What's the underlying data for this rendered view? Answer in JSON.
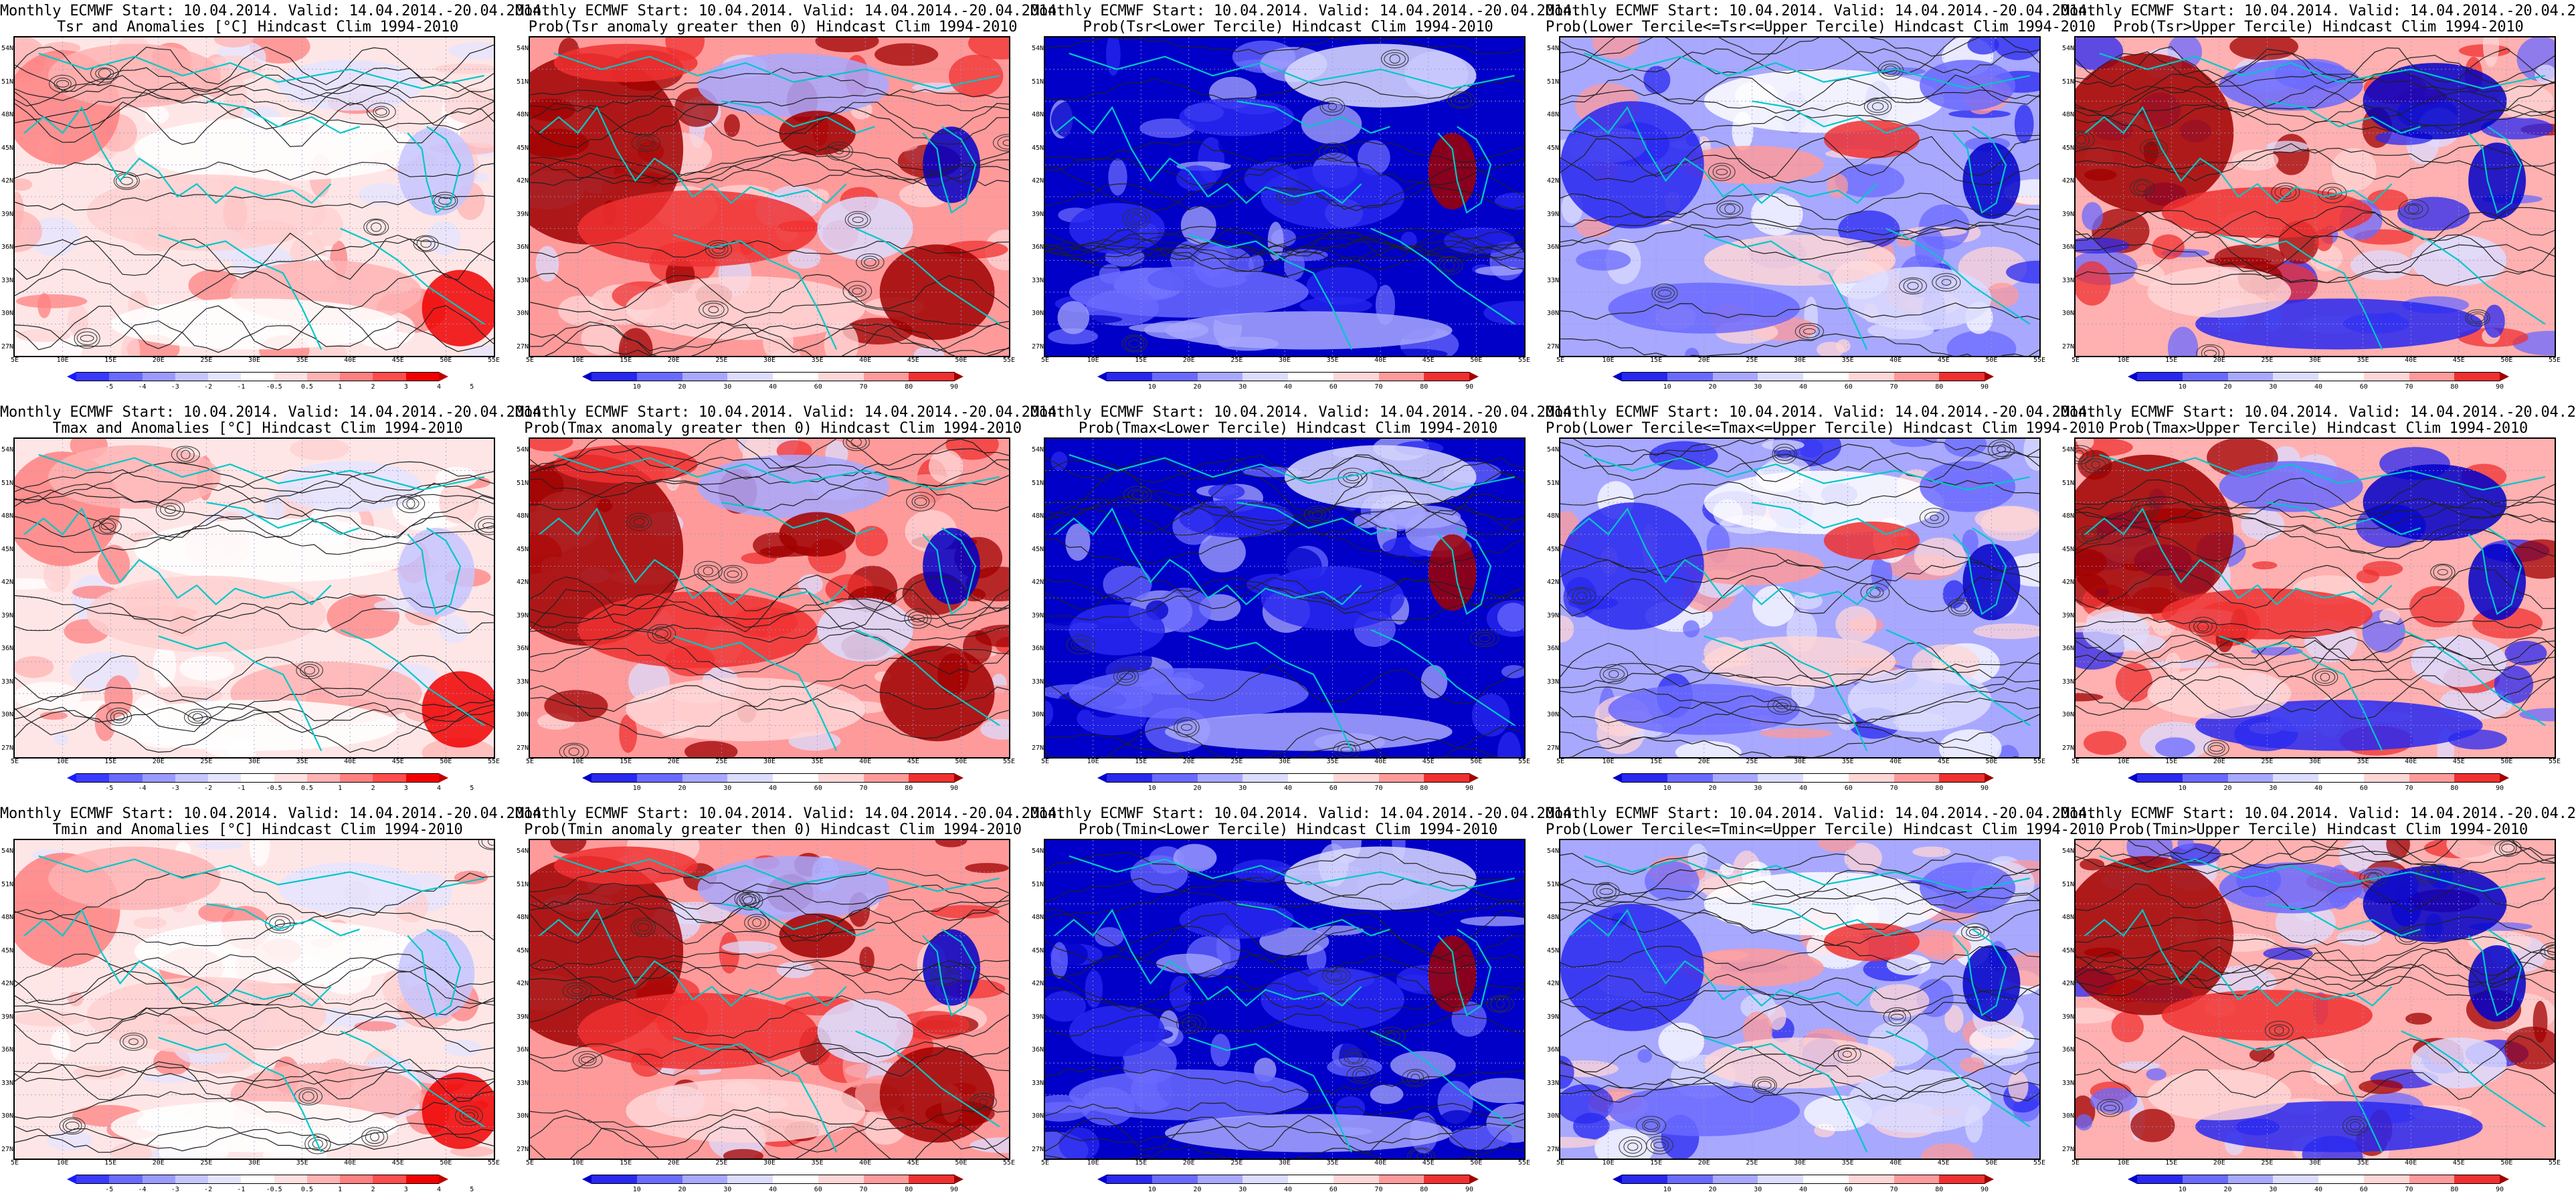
{
  "common_title": "Monthly ECMWF Start: 10.04.2014. Valid: 14.04.2014.-20.04.2014.",
  "lat_labels": [
    "54N",
    "51N",
    "48N",
    "45N",
    "42N",
    "39N",
    "36N",
    "33N",
    "30N",
    "27N"
  ],
  "lon_labels": [
    "5E",
    "10E",
    "15E",
    "20E",
    "25E",
    "30E",
    "35E",
    "40E",
    "45E",
    "50E",
    "55E"
  ],
  "anomaly_scale": {
    "labels": [
      "-5",
      "-4",
      "-3",
      "-2",
      "-1",
      "-0.5",
      "0.5",
      "1",
      "2",
      "3",
      "4",
      "5"
    ],
    "colors": [
      "#1a1aff",
      "#3a3aff",
      "#6a6aff",
      "#9a9aff",
      "#c6c6ff",
      "#e4e4ff",
      "#ffffff",
      "#ffe0e0",
      "#ffb3b3",
      "#ff8080",
      "#ff4d4d",
      "#f00000",
      "#c00000"
    ]
  },
  "probability_scale": {
    "labels": [
      "10",
      "20",
      "30",
      "40",
      "60",
      "70",
      "80",
      "90"
    ],
    "colors": [
      "#0000c8",
      "#2828f0",
      "#6a6aff",
      "#a8a8ff",
      "#dcdcff",
      "#ffffff",
      "#ffd6d6",
      "#ff9a9a",
      "#f03030",
      "#a00000"
    ]
  },
  "panels": [
    {
      "id": "p1",
      "row": 0,
      "col": 0,
      "subtitle": "Tsr and Anomalies [°C] Hindcast Clim 1994-2010",
      "scale": "anomaly",
      "mode": "anom"
    },
    {
      "id": "p2",
      "row": 0,
      "col": 1,
      "subtitle": "Prob(Tsr anomaly greater then 0) Hindcast Clim 1994-2010",
      "scale": "probability",
      "mode": "warm"
    },
    {
      "id": "p3",
      "row": 0,
      "col": 2,
      "subtitle": "Prob(Tsr<Lower Tercile) Hindcast Clim 1994-2010",
      "scale": "probability",
      "mode": "cold"
    },
    {
      "id": "p4",
      "row": 0,
      "col": 3,
      "subtitle": "Prob(Lower Tercile<=Tsr<=Upper Tercile) Hindcast Clim 1994-2010",
      "scale": "probability",
      "mode": "mixed"
    },
    {
      "id": "p5",
      "row": 0,
      "col": 4,
      "subtitle": "Prob(Tsr>Upper Tercile) Hindcast Clim 1994-2010",
      "scale": "probability",
      "mode": "upper"
    },
    {
      "id": "p6",
      "row": 1,
      "col": 0,
      "subtitle": "Tmax and Anomalies [°C] Hindcast Clim 1994-2010",
      "scale": "anomaly",
      "mode": "anom"
    },
    {
      "id": "p7",
      "row": 1,
      "col": 1,
      "subtitle": "Prob(Tmax anomaly greater then 0) Hindcast Clim 1994-2010",
      "scale": "probability",
      "mode": "warm"
    },
    {
      "id": "p8",
      "row": 1,
      "col": 2,
      "subtitle": "Prob(Tmax<Lower Tercile) Hindcast Clim 1994-2010",
      "scale": "probability",
      "mode": "cold"
    },
    {
      "id": "p9",
      "row": 1,
      "col": 3,
      "subtitle": "Prob(Lower Tercile<=Tmax<=Upper Tercile) Hindcast Clim 1994-2010",
      "scale": "probability",
      "mode": "mixed"
    },
    {
      "id": "p10",
      "row": 1,
      "col": 4,
      "subtitle": "Prob(Tmax>Upper Tercile) Hindcast Clim 1994-2010",
      "scale": "probability",
      "mode": "upper"
    },
    {
      "id": "p11",
      "row": 2,
      "col": 0,
      "subtitle": "Tmin and Anomalies [°C] Hindcast Clim 1994-2010",
      "scale": "anomaly",
      "mode": "anom"
    },
    {
      "id": "p12",
      "row": 2,
      "col": 1,
      "subtitle": "Prob(Tmin anomaly greater then 0) Hindcast Clim 1994-2010",
      "scale": "probability",
      "mode": "warm"
    },
    {
      "id": "p13",
      "row": 2,
      "col": 2,
      "subtitle": "Prob(Tmin<Lower Tercile) Hindcast Clim 1994-2010",
      "scale": "probability",
      "mode": "cold"
    },
    {
      "id": "p14",
      "row": 2,
      "col": 3,
      "subtitle": "Prob(Lower Tercile<=Tmin<=Upper Tercile) Hindcast Clim 1994-2010",
      "scale": "probability",
      "mode": "mixed"
    },
    {
      "id": "p15",
      "row": 2,
      "col": 4,
      "subtitle": "Prob(Tmin>Upper Tercile) Hindcast Clim 1994-2010",
      "scale": "probability",
      "mode": "upper"
    }
  ]
}
